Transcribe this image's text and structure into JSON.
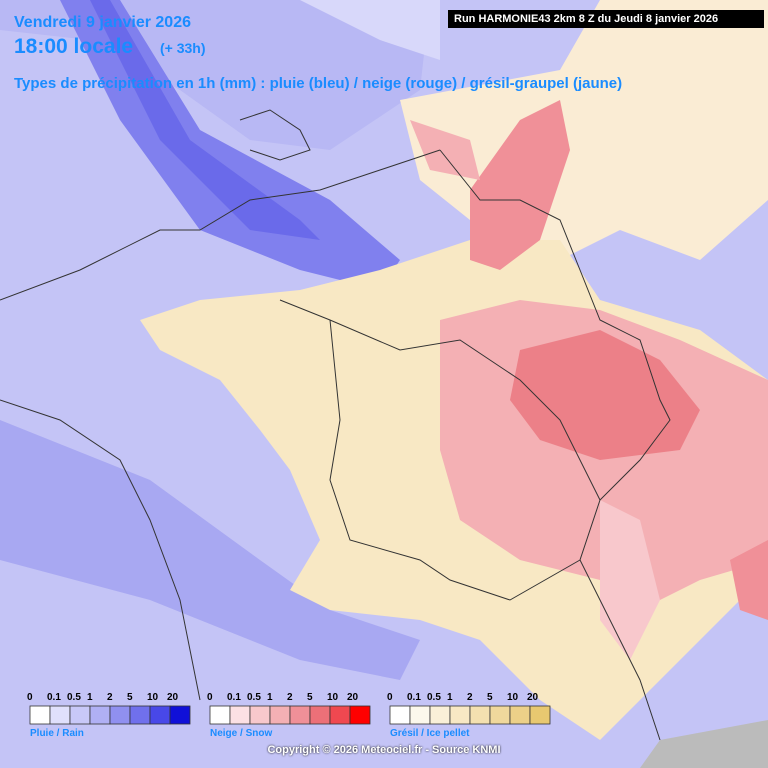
{
  "header": {
    "date": "Vendredi 9 janvier 2026",
    "time": "18:00 locale",
    "offset": "(+ 33h)",
    "subtitle": "Types de précipitation en 1h (mm) : pluie (bleu) / neige (rouge) / grésil-graupel (jaune)",
    "run": "Run HARMONIE43 2km 8 Z du Jeudi 8 janvier 2026"
  },
  "legends": [
    {
      "label": "Pluie / Rain",
      "ticks": [
        0,
        0.1,
        0.5,
        1,
        2,
        5,
        10,
        20
      ],
      "colors": [
        "#ffffff",
        "#e0e0fc",
        "#c8c8f8",
        "#b0b0f4",
        "#9090f0",
        "#7070ec",
        "#4848e8",
        "#1010d8"
      ]
    },
    {
      "label": "Neige / Snow",
      "ticks": [
        0,
        0.1,
        0.5,
        1,
        2,
        5,
        10,
        20
      ],
      "colors": [
        "#ffffff",
        "#fce0e4",
        "#f8c8cc",
        "#f4b0b4",
        "#f09098",
        "#ec7078",
        "#f04850",
        "#ff0000"
      ]
    },
    {
      "label": "Grésil / Ice pellet",
      "ticks": [
        0,
        0.1,
        0.5,
        1,
        2,
        5,
        10,
        20
      ],
      "colors": [
        "#ffffff",
        "#fcf8ec",
        "#faf0d8",
        "#f8e8c4",
        "#f4e0b0",
        "#f0d89c",
        "#ecd088",
        "#e8c870"
      ]
    }
  ],
  "footer": "Copyright © 2026 Meteociel.fr - Source KNMI"
}
